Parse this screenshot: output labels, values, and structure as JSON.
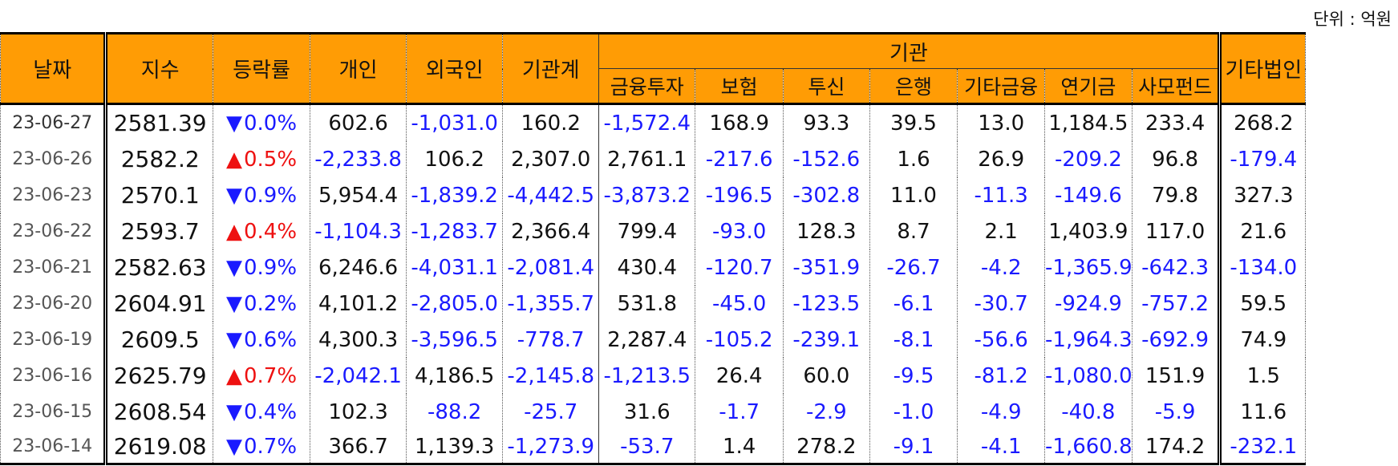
{
  "unit_label": "단위 : 억원",
  "headers": {
    "date": "날짜",
    "index": "지수",
    "change": "등락률",
    "individual": "개인",
    "foreign": "외국인",
    "institution_total": "기관계",
    "institution_group": "기관",
    "financial_investment": "금융투자",
    "insurance": "보험",
    "investment_trust": "투신",
    "bank": "은행",
    "other_financial": "기타금융",
    "pension": "연기금",
    "private_fund": "사모펀드",
    "other_corp": "기타법인"
  },
  "icons": {
    "down": "▼",
    "up": "▲",
    "down_color": "#1a1aff",
    "up_color": "#ee1111"
  },
  "rows": [
    [
      "23-06-27",
      "2581.39",
      "down",
      "0.0%",
      "602.6",
      "-1,031.0",
      "160.2",
      "-1,572.4",
      "168.9",
      "93.3",
      "39.5",
      "13.0",
      "1,184.5",
      "233.4",
      "268.2"
    ],
    [
      "23-06-26",
      "2582.2",
      "up",
      "0.5%",
      "-2,233.8",
      "106.2",
      "2,307.0",
      "2,761.1",
      "-217.6",
      "-152.6",
      "1.6",
      "26.9",
      "-209.2",
      "96.8",
      "-179.4"
    ],
    [
      "23-06-23",
      "2570.1",
      "down",
      "0.9%",
      "5,954.4",
      "-1,839.2",
      "-4,442.5",
      "-3,873.2",
      "-196.5",
      "-302.8",
      "11.0",
      "-11.3",
      "-149.6",
      "79.8",
      "327.3"
    ],
    [
      "23-06-22",
      "2593.7",
      "up",
      "0.4%",
      "-1,104.3",
      "-1,283.7",
      "2,366.4",
      "799.4",
      "-93.0",
      "128.3",
      "8.7",
      "2.1",
      "1,403.9",
      "117.0",
      "21.6"
    ],
    [
      "23-06-21",
      "2582.63",
      "down",
      "0.9%",
      "6,246.6",
      "-4,031.1",
      "-2,081.4",
      "430.4",
      "-120.7",
      "-351.9",
      "-26.7",
      "-4.2",
      "-1,365.9",
      "-642.3",
      "-134.0"
    ],
    [
      "23-06-20",
      "2604.91",
      "down",
      "0.2%",
      "4,101.2",
      "-2,805.0",
      "-1,355.7",
      "531.8",
      "-45.0",
      "-123.5",
      "-6.1",
      "-30.7",
      "-924.9",
      "-757.2",
      "59.5"
    ],
    [
      "23-06-19",
      "2609.5",
      "down",
      "0.6%",
      "4,300.3",
      "-3,596.5",
      "-778.7",
      "2,287.4",
      "-105.2",
      "-239.1",
      "-8.1",
      "-56.6",
      "-1,964.3",
      "-692.9",
      "74.9"
    ],
    [
      "23-06-16",
      "2625.79",
      "up",
      "0.7%",
      "-2,042.1",
      "4,186.5",
      "-2,145.8",
      "-1,213.5",
      "26.4",
      "60.0",
      "-9.5",
      "-81.2",
      "-1,080.0",
      "151.9",
      "1.5"
    ],
    [
      "23-06-15",
      "2608.54",
      "down",
      "0.4%",
      "102.3",
      "-88.2",
      "-25.7",
      "31.6",
      "-1.7",
      "-2.9",
      "-1.0",
      "-4.9",
      "-40.8",
      "-5.9",
      "11.6"
    ],
    [
      "23-06-14",
      "2619.08",
      "down",
      "0.7%",
      "366.7",
      "1,139.3",
      "-1,273.9",
      "-53.7",
      "1.4",
      "278.2",
      "-9.1",
      "-4.1",
      "-1,660.8",
      "174.2",
      "-232.1"
    ]
  ]
}
